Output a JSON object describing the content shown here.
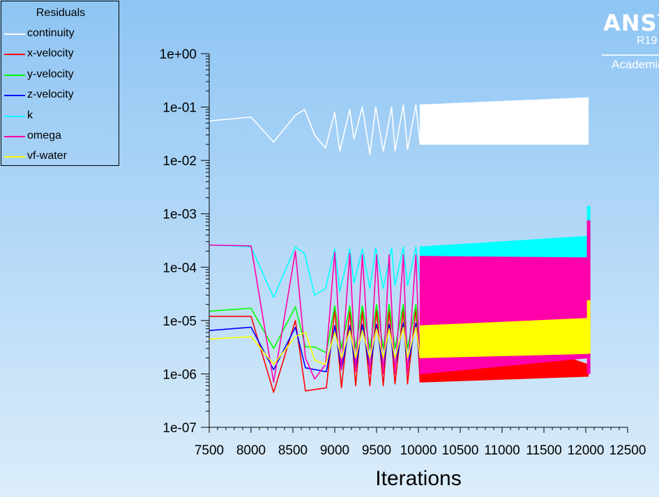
{
  "legend": {
    "title": "Residuals",
    "items": [
      {
        "label": "continuity",
        "color": "#ffffff"
      },
      {
        "label": "x-velocity",
        "color": "#ff0000"
      },
      {
        "label": "y-velocity",
        "color": "#00ff00"
      },
      {
        "label": "z-velocity",
        "color": "#0000ff"
      },
      {
        "label": "k",
        "color": "#00ffff"
      },
      {
        "label": "omega",
        "color": "#ff00aa"
      },
      {
        "label": "vf-water",
        "color": "#ffff00"
      }
    ]
  },
  "logo": {
    "name": "ANSYS",
    "release": "R19",
    "edition": "Academic"
  },
  "chart_data": {
    "type": "line",
    "title": "",
    "xlabel": "Iterations",
    "ylabel": "",
    "yscale": "log",
    "xlim": [
      7500,
      12500
    ],
    "ylim": [
      1e-07,
      1
    ],
    "x_tick_labels": [
      "7500",
      "8000",
      "8500",
      "9000",
      "9500",
      "10000",
      "10500",
      "11000",
      "11500",
      "12000",
      "12500"
    ],
    "y_tick_labels": [
      "1e+00",
      "1e-01",
      "1e-02",
      "1e-03",
      "1e-04",
      "1e-05",
      "1e-06",
      "1e-07"
    ],
    "grid": false,
    "legend_position": "top-left",
    "series": [
      {
        "name": "continuity",
        "color": "#ffffff",
        "x": [
          7500,
          8000,
          8270,
          8530,
          8640,
          8760,
          8890,
          9000,
          9060,
          9180,
          9230,
          9330,
          9420,
          9490,
          9580,
          9680,
          9720,
          9820,
          9870,
          9970,
          10020
        ],
        "y": [
          0.055,
          0.065,
          0.022,
          0.07,
          0.09,
          0.03,
          0.017,
          0.08,
          0.015,
          0.09,
          0.025,
          0.1,
          0.013,
          0.1,
          0.015,
          0.1,
          0.015,
          0.11,
          0.016,
          0.11,
          0.02
        ],
        "band": {
          "x_start": 10020,
          "x_end": 12030,
          "low": [
            0.02,
            0.02
          ],
          "high": [
            0.11,
            0.15
          ]
        }
      },
      {
        "name": "x-velocity",
        "color": "#ff0000",
        "x": [
          7500,
          8000,
          8270,
          8530,
          8650,
          8900,
          9000,
          9080,
          9180,
          9250,
          9330,
          9420,
          9500,
          9580,
          9650,
          9720,
          9820,
          9870,
          9970,
          10020
        ],
        "y": [
          1.2e-05,
          1.2e-05,
          4.5e-07,
          1e-05,
          4.8e-07,
          5.5e-07,
          1.6e-05,
          5.5e-07,
          1.5e-05,
          6e-07,
          1.5e-05,
          6e-07,
          1.6e-05,
          6e-07,
          1.6e-05,
          6.5e-07,
          1.6e-05,
          6.5e-07,
          1.7e-05,
          7e-07
        ],
        "band": {
          "x_start": 10020,
          "x_end": 12030,
          "low": [
            7e-07,
            9e-07
          ],
          "high": [
            1.8e-05,
            1.5e-06
          ]
        }
      },
      {
        "name": "y-velocity",
        "color": "#00ff00",
        "x": [
          7500,
          8000,
          8270,
          8530,
          8650,
          8760,
          8900,
          9000,
          9080,
          9180,
          9250,
          9330,
          9420,
          9500,
          9580,
          9650,
          9720,
          9820,
          9870,
          9970,
          10020
        ],
        "y": [
          1.5e-05,
          1.7e-05,
          3e-06,
          1.8e-05,
          3.2e-06,
          3.2e-06,
          2.5e-06,
          1.9e-05,
          3e-06,
          1.9e-05,
          3e-06,
          1.9e-05,
          3e-06,
          2e-05,
          3e-06,
          2e-05,
          3e-06,
          2e-05,
          3e-06,
          2e-05,
          3e-06
        ]
      },
      {
        "name": "z-velocity",
        "color": "#0000ff",
        "x": [
          7500,
          8000,
          8270,
          8530,
          8650,
          8900,
          9000,
          9080,
          9180,
          9250,
          9330,
          9420,
          9500,
          9580,
          9650,
          9720,
          9820,
          9870,
          9970,
          10020
        ],
        "y": [
          6.5e-06,
          7.5e-06,
          1.2e-06,
          7.5e-06,
          1.3e-06,
          1.1e-06,
          8e-06,
          1.2e-06,
          8e-06,
          1.2e-06,
          8.5e-06,
          1.2e-06,
          8.5e-06,
          1.2e-06,
          8.5e-06,
          1.3e-06,
          9e-06,
          1.3e-06,
          9e-06,
          1.5e-06
        ],
        "band": {
          "x_start": 10020,
          "x_end": 10520,
          "low": [
            1.8e-06,
            1.8e-06
          ],
          "high": [
            9e-06,
            9e-06
          ]
        }
      },
      {
        "name": "k",
        "color": "#00ffff",
        "x": [
          7500,
          8000,
          8270,
          8530,
          8640,
          8760,
          8890,
          9000,
          9060,
          9180,
          9230,
          9330,
          9420,
          9490,
          9580,
          9680,
          9720,
          9820,
          9870,
          9970,
          10020
        ],
        "y": [
          0.00026,
          0.00024,
          2.7e-05,
          0.00024,
          0.00018,
          3e-05,
          4e-05,
          0.00022,
          3.5e-05,
          0.00022,
          5e-05,
          0.00022,
          4e-05,
          0.00023,
          4e-05,
          0.00023,
          4.5e-05,
          0.00024,
          4.5e-05,
          0.00024,
          5e-05
        ],
        "band": {
          "x_start": 10020,
          "x_end": 12030,
          "low": [
            5e-05,
            0.00014
          ],
          "high": [
            0.00024,
            0.00038
          ]
        },
        "spike": {
          "x": 12030,
          "low": 0.00014,
          "high": 0.0014
        }
      },
      {
        "name": "omega",
        "color": "#ff00aa",
        "x": [
          7500,
          8000,
          8270,
          8530,
          8650,
          8760,
          8890,
          9000,
          9080,
          9180,
          9250,
          9330,
          9420,
          9500,
          9580,
          9650,
          9720,
          9820,
          9870,
          9970,
          10020
        ],
        "y": [
          0.00026,
          0.00025,
          7e-07,
          0.0002,
          2e-06,
          8e-07,
          1.5e-06,
          0.00019,
          1.2e-06,
          0.00018,
          1.1e-06,
          0.00017,
          1e-06,
          0.00017,
          1e-06,
          0.00017,
          1e-06,
          0.00017,
          1e-06,
          0.00017,
          1e-06
        ],
        "band": {
          "x_start": 10020,
          "x_end": 12030,
          "low": [
            1e-06,
            2e-06
          ],
          "high": [
            0.00016,
            0.00015
          ]
        },
        "spike": {
          "x": 12030,
          "low": 1e-06,
          "high": 0.00075
        }
      },
      {
        "name": "vf-water",
        "color": "#ffff00",
        "x": [
          7500,
          8000,
          8270,
          8530,
          8650,
          8760,
          8890,
          9000,
          9080,
          9180,
          9250,
          9330,
          9420,
          9500,
          9580,
          9650,
          9720,
          9820,
          9870,
          9970,
          10020
        ],
        "y": [
          4.5e-06,
          5e-06,
          1.5e-06,
          5e-06,
          6e-06,
          1.8e-06,
          1.5e-06,
          6e-06,
          2e-06,
          6.5e-06,
          2e-06,
          6.5e-06,
          2e-06,
          7e-06,
          2e-06,
          7e-06,
          2e-06,
          7.5e-06,
          2e-06,
          7.5e-06,
          2e-06
        ],
        "band": {
          "x_start": 10020,
          "x_end": 12030,
          "low": [
            2e-06,
            2.4e-06
          ],
          "high": [
            8e-06,
            1.1e-05
          ]
        },
        "spike": {
          "x": 12030,
          "low": 2.4e-06,
          "high": 2.4e-05
        }
      }
    ]
  }
}
